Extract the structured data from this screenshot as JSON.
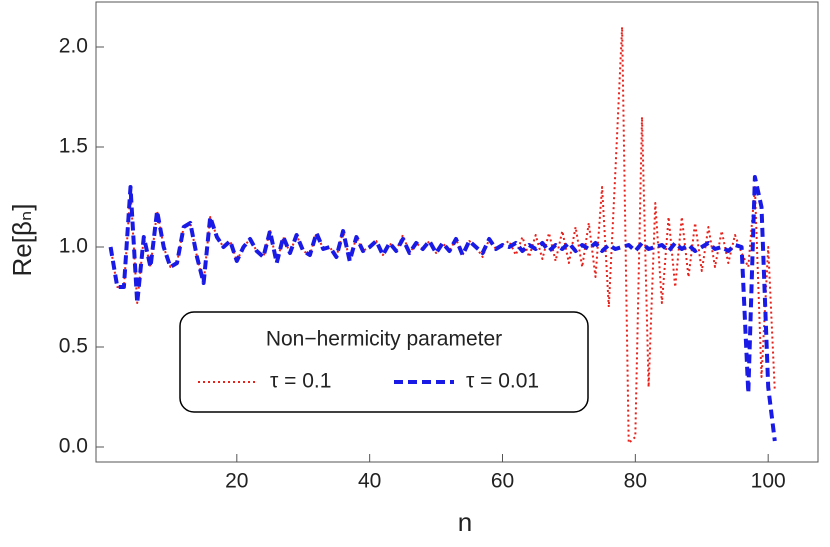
{
  "chart_data": {
    "type": "line",
    "x_label": "n",
    "y_label": "Re[βₙ]",
    "x": [
      1,
      2,
      3,
      4,
      5,
      6,
      7,
      8,
      9,
      10,
      11,
      12,
      13,
      14,
      15,
      16,
      17,
      18,
      19,
      20,
      21,
      22,
      23,
      24,
      25,
      26,
      27,
      28,
      29,
      30,
      31,
      32,
      33,
      34,
      35,
      36,
      37,
      38,
      39,
      40,
      41,
      42,
      43,
      44,
      45,
      46,
      47,
      48,
      49,
      50,
      51,
      52,
      53,
      54,
      55,
      56,
      57,
      58,
      59,
      60,
      61,
      62,
      63,
      64,
      65,
      66,
      67,
      68,
      69,
      70,
      71,
      72,
      73,
      74,
      75,
      76,
      77,
      78,
      79,
      80,
      81,
      82,
      83,
      84,
      85,
      86,
      87,
      88,
      89,
      90,
      91,
      92,
      93,
      94,
      95,
      96,
      97,
      98,
      99,
      100,
      101
    ],
    "series": [
      {
        "name": "τ = 0.1",
        "color": "#e8211b",
        "line_style": "dotted",
        "values": [
          1.0,
          0.8,
          0.8,
          1.28,
          0.72,
          1.05,
          0.9,
          1.18,
          1.0,
          0.9,
          0.92,
          1.1,
          1.12,
          0.95,
          0.82,
          1.15,
          1.05,
          1.0,
          1.03,
          0.93,
          1.0,
          1.04,
          0.98,
          0.95,
          1.08,
          0.92,
          1.05,
          0.97,
          1.06,
          0.98,
          0.96,
          1.07,
          0.99,
          1.0,
          0.95,
          1.08,
          0.93,
          1.05,
          0.98,
          1.0,
          1.03,
          0.96,
          1.02,
          0.98,
          1.06,
          0.97,
          1.02,
          0.99,
          1.03,
          0.97,
          1.02,
          0.98,
          1.04,
          0.96,
          1.03,
          1.0,
          0.95,
          1.04,
          0.99,
          1.01,
          1.03,
          0.96,
          1.05,
          0.95,
          1.06,
          0.94,
          1.07,
          0.93,
          1.08,
          0.92,
          1.1,
          0.9,
          1.12,
          0.85,
          1.3,
          0.7,
          1.38,
          2.1,
          0.02,
          0.05,
          1.65,
          0.3,
          1.22,
          0.72,
          1.15,
          0.8,
          1.15,
          0.85,
          1.12,
          0.88,
          1.1,
          0.9,
          1.08,
          0.92,
          1.06,
          0.97,
          0.9,
          1.3,
          0.35,
          1.0,
          0.28
        ]
      },
      {
        "name": "τ = 0.01",
        "color": "#1a1ae6",
        "line_style": "dashed",
        "values": [
          1.0,
          0.8,
          0.8,
          1.3,
          0.72,
          1.05,
          0.9,
          1.18,
          1.0,
          0.9,
          0.92,
          1.1,
          1.12,
          0.95,
          0.82,
          1.15,
          1.05,
          1.0,
          1.03,
          0.93,
          1.0,
          1.04,
          0.98,
          0.95,
          1.08,
          0.92,
          1.05,
          0.97,
          1.06,
          0.98,
          0.96,
          1.07,
          0.99,
          1.0,
          0.95,
          1.08,
          0.93,
          1.05,
          0.98,
          1.0,
          1.03,
          0.96,
          1.02,
          0.98,
          1.04,
          0.97,
          1.02,
          0.99,
          1.03,
          0.97,
          1.02,
          0.98,
          1.04,
          0.96,
          1.03,
          1.0,
          0.97,
          1.04,
          0.99,
          1.01,
          1.0,
          1.02,
          0.98,
          1.01,
          0.99,
          1.02,
          0.98,
          1.01,
          0.99,
          1.02,
          0.98,
          1.01,
          0.99,
          1.02,
          0.98,
          1.01,
          0.99,
          1.0,
          1.01,
          0.98,
          1.02,
          0.99,
          1.0,
          1.01,
          0.98,
          1.02,
          0.99,
          1.01,
          0.98,
          1.0,
          1.02,
          0.99,
          1.0,
          0.98,
          1.01,
          1.0,
          0.27,
          1.35,
          1.2,
          0.3,
          0.03
        ]
      }
    ],
    "legend_title": "Non−hermicity parameter",
    "legend": "lower left",
    "xlim": [
      -1.2,
      107.5
    ],
    "ylim": [
      -0.075,
      2.225
    ],
    "xticks": [
      20,
      40,
      60,
      80,
      100
    ],
    "yticks": [
      {
        "value": 0,
        "label": "0.0"
      },
      0.5,
      {
        "value": 1,
        "label": "1.0"
      },
      1.5,
      {
        "value": 2,
        "label": "2.0"
      }
    ],
    "grid": false
  }
}
